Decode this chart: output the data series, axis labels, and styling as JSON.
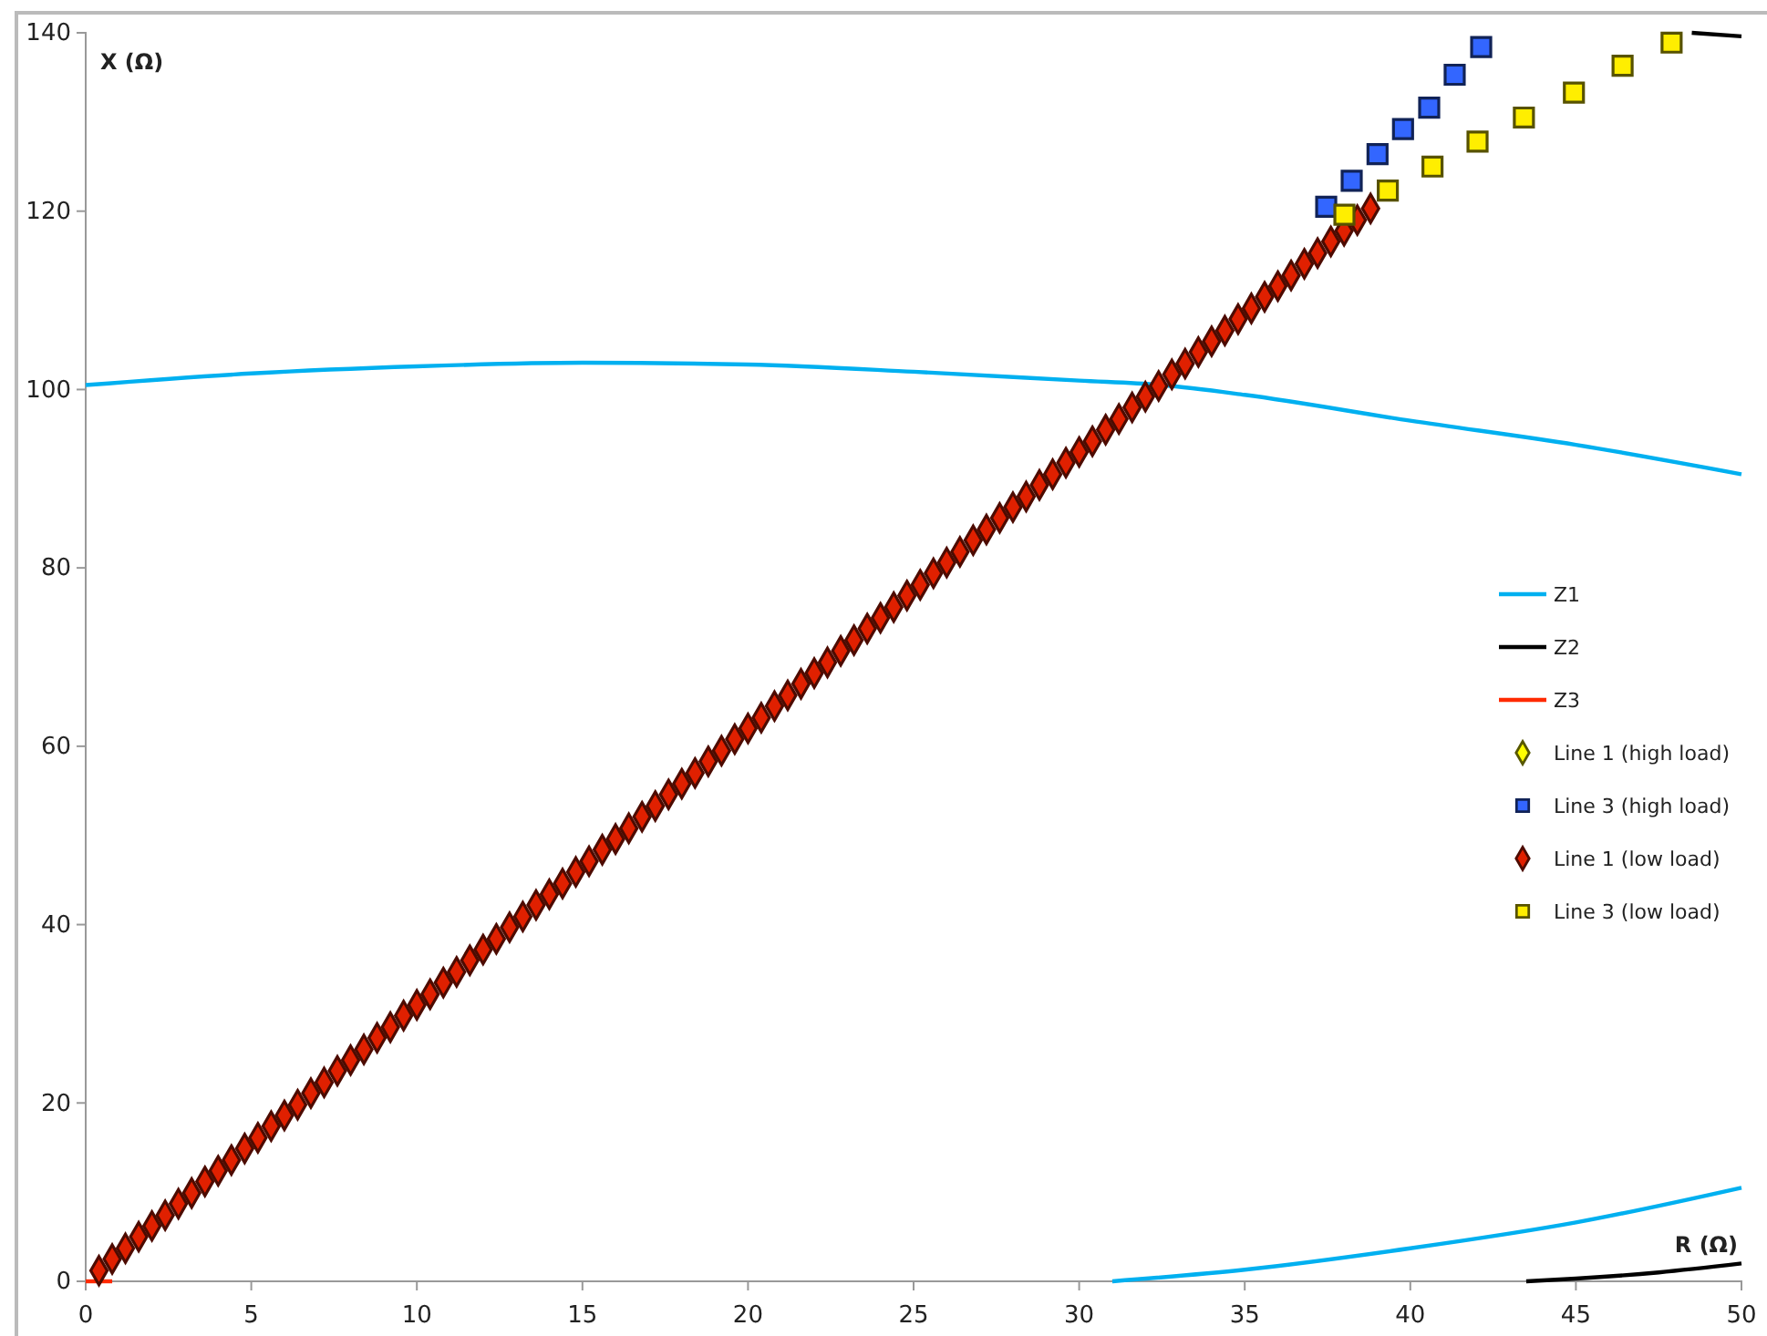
{
  "chart_data": {
    "type": "scatter",
    "xlabel": "R (Ω)",
    "ylabel": "X (Ω)",
    "xlim": [
      0,
      50
    ],
    "ylim": [
      0,
      140
    ],
    "xticks": [
      0,
      5,
      10,
      15,
      20,
      25,
      30,
      35,
      40,
      45,
      50
    ],
    "yticks": [
      0,
      20,
      40,
      60,
      80,
      100,
      120,
      140
    ],
    "grid": false,
    "legend": "right",
    "series": [
      {
        "name": "Z1",
        "type": "line",
        "color": "#00b0f0",
        "x": [
          0,
          5,
          10,
          15,
          20,
          25,
          30,
          32.5,
          35,
          40,
          45,
          50,
          null,
          31,
          35,
          40,
          45,
          50
        ],
        "values": [
          100.5,
          101.8,
          102.6,
          103,
          102.8,
          102,
          101,
          100.5,
          99.4,
          96.5,
          93.8,
          90.5,
          null,
          0,
          1.3,
          3.7,
          6.6,
          10.5
        ]
      },
      {
        "name": "Z2",
        "type": "line",
        "color": "#000000",
        "x": [
          48.5,
          50,
          null,
          43.5,
          45,
          47.5,
          50
        ],
        "values": [
          140,
          139.6,
          null,
          0,
          0.3,
          1,
          2
        ]
      },
      {
        "name": "Z3",
        "type": "line",
        "color": "#ff2a00",
        "x": [
          0,
          0.8
        ],
        "values": [
          0,
          0
        ]
      },
      {
        "name": "Line 1 (high load)",
        "color": "#ffff00",
        "marker": "diamond"
      },
      {
        "name": "Line 3 (high load)",
        "color": "#3366ff",
        "marker": "square",
        "x": [
          37.46,
          38.23,
          39.01,
          39.78,
          40.57,
          41.34,
          42.14
        ],
        "values": [
          120.5,
          123.4,
          126.4,
          129.2,
          131.6,
          135.3,
          138.4
        ]
      },
      {
        "name": "Line 1 (low load)",
        "color": "#e02000",
        "marker": "diamond",
        "x": [
          0.4,
          0.8,
          1.2,
          1.6,
          2.0,
          2.4,
          2.8,
          3.2,
          3.6,
          4.0,
          4.4,
          4.8,
          5.2,
          5.6,
          6.0,
          6.4,
          6.8,
          7.2,
          7.6,
          8.0,
          8.4,
          8.8,
          9.2,
          9.6,
          10.0,
          10.4,
          10.8,
          11.2,
          11.6,
          12.0,
          12.4,
          12.8,
          13.2,
          13.6,
          14.0,
          14.4,
          14.8,
          15.2,
          15.6,
          16.0,
          16.4,
          16.8,
          17.2,
          17.6,
          18.0,
          18.4,
          18.8,
          19.2,
          19.6,
          20.0,
          20.4,
          20.8,
          21.2,
          21.6,
          22.0,
          22.4,
          22.8,
          23.2,
          23.6,
          24.0,
          24.4,
          24.8,
          25.2,
          25.6,
          26.0,
          26.4,
          26.8,
          27.2,
          27.6,
          28.0,
          28.4,
          28.8,
          29.2,
          29.6,
          30.0,
          30.4,
          30.8,
          31.2,
          31.6,
          32.0,
          32.4,
          32.8,
          33.2,
          33.6,
          34.0,
          34.4,
          34.8,
          35.2,
          35.6,
          36.0,
          36.4,
          36.8,
          37.2,
          37.6,
          38.0,
          38.4,
          38.8
        ],
        "values": [
          1.2,
          2.5,
          3.7,
          5.0,
          6.2,
          7.4,
          8.7,
          9.9,
          11.2,
          12.4,
          13.6,
          14.9,
          16.1,
          17.4,
          18.6,
          19.8,
          21.1,
          22.3,
          23.6,
          24.8,
          26.0,
          27.3,
          28.5,
          29.8,
          31.0,
          32.2,
          33.5,
          34.7,
          36.0,
          37.2,
          38.4,
          39.7,
          40.9,
          42.2,
          43.4,
          44.6,
          45.9,
          47.1,
          48.4,
          49.6,
          50.8,
          52.1,
          53.3,
          54.6,
          55.8,
          57.0,
          58.3,
          59.5,
          60.8,
          62.0,
          63.2,
          64.5,
          65.7,
          67.0,
          68.2,
          69.4,
          70.7,
          71.9,
          73.2,
          74.4,
          75.6,
          76.9,
          78.1,
          79.4,
          80.6,
          81.8,
          83.1,
          84.3,
          85.6,
          86.8,
          88.0,
          89.3,
          90.5,
          91.8,
          93.0,
          94.2,
          95.5,
          96.7,
          98.0,
          99.2,
          100.4,
          101.7,
          102.9,
          104.2,
          105.4,
          106.6,
          107.9,
          109.1,
          110.4,
          111.6,
          112.8,
          114.1,
          115.3,
          116.6,
          117.8,
          119.0,
          120.3
        ]
      },
      {
        "name": "Line 3 (low load)",
        "color": "#ffee00",
        "marker": "square",
        "x": [
          38.01,
          39.32,
          40.67,
          42.03,
          43.43,
          44.94,
          46.41,
          47.89
        ],
        "values": [
          119.6,
          122.3,
          125.0,
          127.8,
          130.5,
          133.3,
          136.3,
          138.9
        ]
      }
    ]
  }
}
